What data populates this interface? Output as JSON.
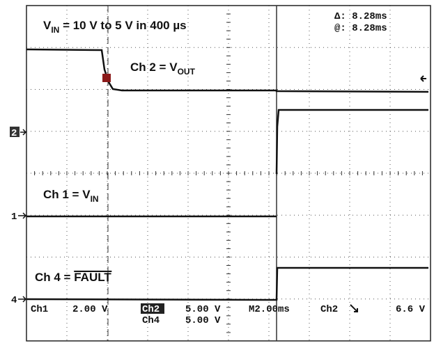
{
  "labels": {
    "vin_step": {
      "main": "V",
      "sub": "IN",
      "rest": " = 10 V to 5 V in 400 µs"
    },
    "ch2": {
      "main": "Ch 2 = V",
      "sub": "OUT"
    },
    "ch1": {
      "main": "Ch 1 = V",
      "sub": "IN"
    },
    "ch4": {
      "main": "Ch 4 = ",
      "over": "FAULT"
    }
  },
  "cursors": {
    "delta": "Δ: 8.28ms",
    "at": "@: 8.28ms"
  },
  "markers": [
    "2",
    "1",
    "4"
  ],
  "status": {
    "ch1": "Ch1",
    "ch1_scale": "2.00 V",
    "ch2": "Ch2",
    "ch2_scale": "5.00 V",
    "ch4": "Ch4",
    "ch4_scale": "5.00 V",
    "time": "M2.00ms",
    "trig_src": "Ch2",
    "trig_level": "6.6 V"
  }
}
